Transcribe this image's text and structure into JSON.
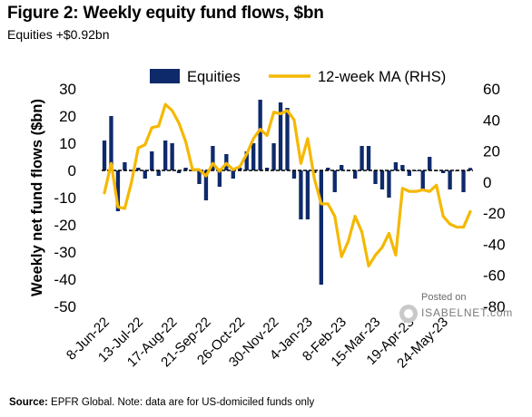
{
  "title": "Figure 2: Weekly equity fund flows, $bn",
  "subtitle": "Equities +$0.92bn",
  "source_label": "Source:",
  "source_text": "EPFR Global. Note: data are for US-domiciled funds only",
  "watermark": {
    "posted": "Posted on",
    "site": "ISABELNET.com"
  },
  "colors": {
    "bars": "#0f2a6b",
    "line": "#f5b800",
    "zero": "#000000"
  },
  "chart_data": {
    "type": "bar+line",
    "title": "Weekly equity fund flows, $bn",
    "ylabel": "Weekly net fund flows ($bn)",
    "ylim": [
      -50,
      30
    ],
    "y2lim": [
      -80,
      60
    ],
    "yticks": [
      30,
      20,
      10,
      0,
      -10,
      -20,
      -30,
      -40,
      -50
    ],
    "y2ticks": [
      60,
      40,
      20,
      0,
      -20,
      -40,
      -60,
      -80
    ],
    "x_tick_labels": [
      "8-Jun-22",
      "13-Jul-22",
      "17-Aug-22",
      "21-Sep-22",
      "26-Oct-22",
      "30-Nov-22",
      "4-Jan-23",
      "8-Feb-23",
      "15-Mar-23",
      "19-Apr-23",
      "24-May-23"
    ],
    "x_tick_week_index": [
      0,
      5,
      10,
      15,
      20,
      25,
      30,
      35,
      40,
      45,
      50
    ],
    "legend": {
      "placement": "top",
      "entries": [
        "Equities",
        "12-week MA (RHS)"
      ]
    },
    "series": [
      {
        "name": "Equities",
        "type": "bar",
        "axis": "left",
        "values": [
          11,
          20,
          -15,
          3,
          0,
          1,
          -3,
          7,
          -2,
          11,
          10,
          -1,
          1,
          0,
          -5,
          -11,
          9,
          -6,
          6,
          -3,
          1,
          7,
          10,
          26,
          1,
          10,
          25,
          23,
          -3,
          -18,
          -18,
          -1,
          -42,
          1,
          -8,
          2,
          0,
          -3,
          9,
          9,
          -5,
          -7,
          -10,
          3,
          2,
          -2,
          0,
          -7,
          5,
          0,
          -1,
          -7,
          0,
          -8,
          0.92
        ],
        "week_index": [
          0,
          1,
          2,
          3,
          4,
          5,
          6,
          7,
          8,
          9,
          10,
          11,
          12,
          13,
          14,
          15,
          16,
          17,
          18,
          19,
          20,
          21,
          22,
          23,
          24,
          25,
          26,
          27,
          28,
          29,
          30,
          31,
          32,
          33,
          34,
          35,
          36,
          37,
          38,
          39,
          40,
          41,
          42,
          43,
          44,
          45,
          46,
          47,
          48,
          49,
          50,
          51,
          52,
          53,
          54
        ]
      },
      {
        "name": "12-week MA (RHS)",
        "type": "line",
        "axis": "right",
        "week_index": [
          0,
          1,
          2,
          3,
          4,
          5,
          6,
          7,
          8,
          9,
          10,
          11,
          12,
          13,
          14,
          15,
          16,
          17,
          18,
          19,
          20,
          21,
          22,
          23,
          24,
          25,
          26,
          27,
          28,
          29,
          30,
          31,
          32,
          33,
          34,
          35,
          36,
          37,
          38,
          39,
          40,
          41,
          42,
          43,
          44,
          45,
          46,
          47,
          48,
          49,
          50,
          51,
          52,
          53,
          54
        ],
        "values": [
          -7,
          12,
          -16,
          -17,
          0,
          22,
          24,
          35,
          36,
          50,
          46,
          38,
          26,
          8,
          8,
          4,
          12,
          7,
          12,
          8,
          10,
          18,
          28,
          34,
          30,
          45,
          44,
          46,
          40,
          12,
          28,
          2,
          -14,
          -14,
          -22,
          -48,
          -38,
          -22,
          -32,
          -54,
          -47,
          -42,
          -33,
          -47,
          -4,
          -6,
          -6,
          -5,
          -6,
          -2,
          -22,
          -27,
          -29,
          -29,
          -19
        ]
      }
    ]
  }
}
